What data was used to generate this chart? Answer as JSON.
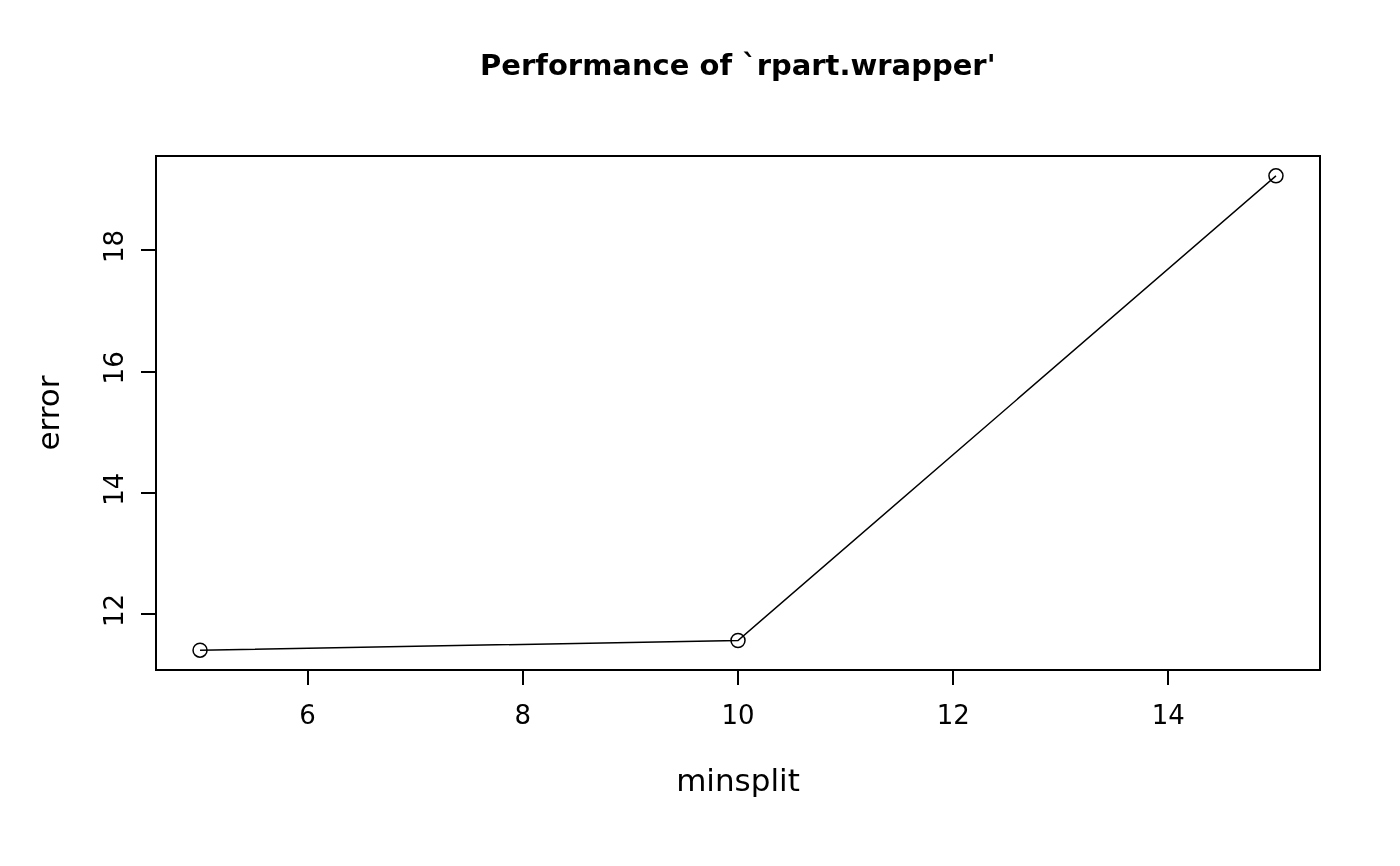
{
  "chart_data": {
    "type": "line",
    "title": "Performance of `rpart.wrapper'",
    "xlabel": "minsplit",
    "ylabel": "error",
    "x": [
      5,
      10,
      15
    ],
    "series": [
      {
        "color": "#000000",
        "values": [
          11.41,
          11.57,
          19.23
        ]
      }
    ],
    "xlim": [
      4.6,
      15.4
    ],
    "xticks": [
      6,
      8,
      10,
      12,
      14
    ],
    "ylim": [
      11.1,
      19.54
    ],
    "yticks": [
      12,
      14,
      16,
      18
    ],
    "grid": false,
    "legend": false,
    "marker": "circle",
    "line_style": "solid"
  }
}
